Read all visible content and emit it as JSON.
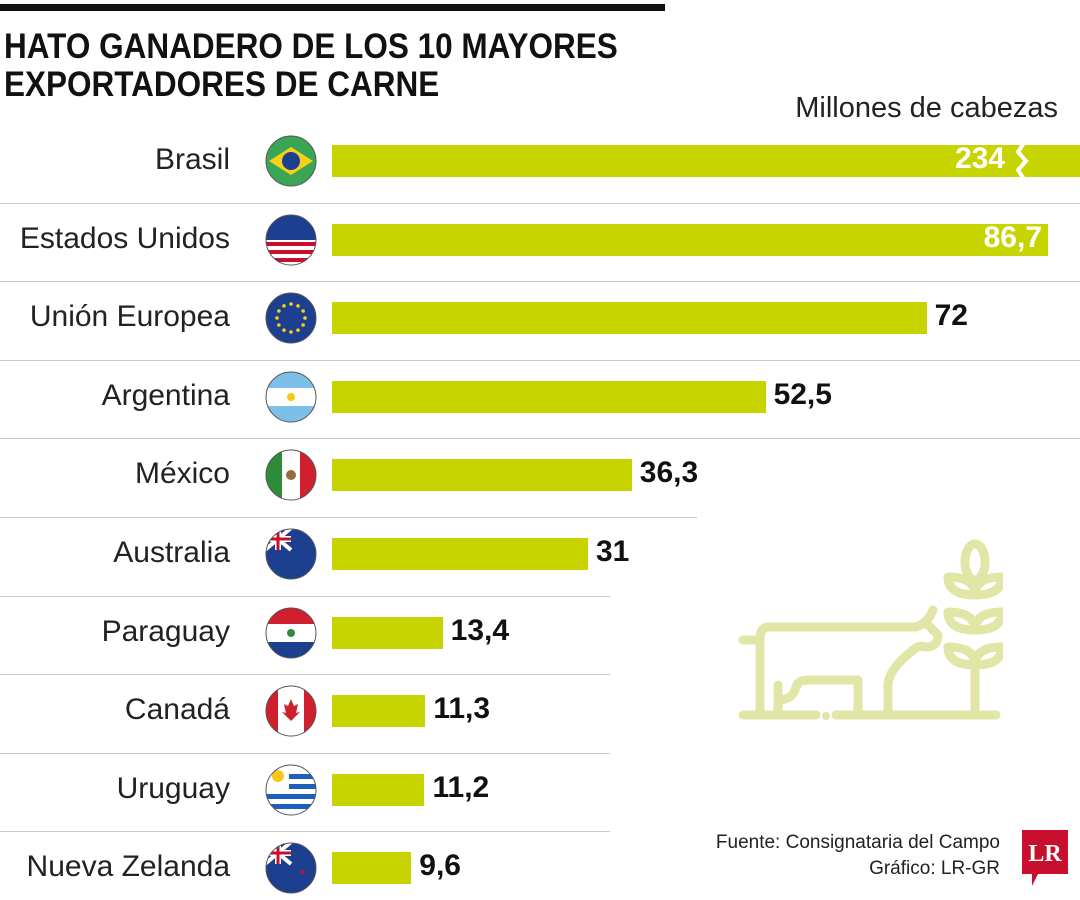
{
  "chart_data": {
    "type": "bar",
    "orientation": "horizontal",
    "title": "HATO GANADERO DE LOS 10 MAYORES EXPORTADORES DE CARNE",
    "unit_label": "Millones de cabezas",
    "categories": [
      "Brasil",
      "Estados Unidos",
      "Unión Europea",
      "Argentina",
      "México",
      "Australia",
      "Paraguay",
      "Canadá",
      "Uruguay",
      "Nueva Zelanda"
    ],
    "values": [
      234,
      86.7,
      72,
      52.5,
      36.3,
      31,
      13.4,
      11.3,
      11.2,
      9.6
    ],
    "value_labels": [
      "234",
      "86,7",
      "72",
      "52,5",
      "36,3",
      "31",
      "13,4",
      "11,3",
      "11,2",
      "9,6"
    ],
    "flag_icons": [
      "brazil-flag-icon",
      "usa-flag-icon",
      "eu-flag-icon",
      "argentina-flag-icon",
      "mexico-flag-icon",
      "australia-flag-icon",
      "paraguay-flag-icon",
      "canada-flag-icon",
      "uruguay-flag-icon",
      "new-zealand-flag-icon"
    ],
    "broken_axis_bars": [
      "Brasil"
    ],
    "bar_color": "#c8d400"
  },
  "source": "Fuente: Consignataria del Campo",
  "credit": "Gráfico: LR-GR",
  "logo_text": "LR",
  "logo_color": "#c8102e",
  "decor_icon": "cow-and-wheat-icon"
}
